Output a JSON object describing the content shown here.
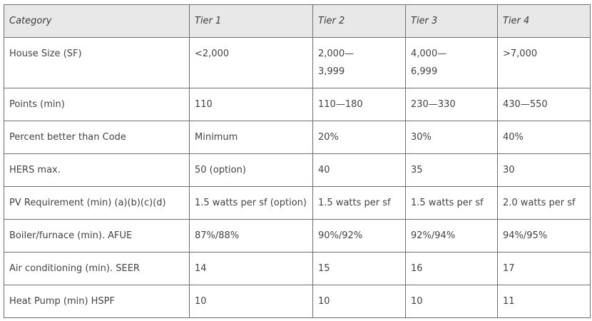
{
  "table": {
    "headers": [
      "Category",
      "Tier 1",
      "Tier 2",
      "Tier 3",
      "Tier 4"
    ],
    "rows": [
      [
        "House Size (SF)",
        "<2,000",
        "2,000—\n3,999",
        "4,000—\n6,999",
        ">7,000"
      ],
      [
        "Points (min)",
        "110",
        "110—180",
        "230—330",
        "430—550"
      ],
      [
        "Percent better than Code",
        "Minimum",
        "20%",
        "30%",
        "40%"
      ],
      [
        "HERS max.",
        "50 (option)",
        "40",
        "35",
        "30"
      ],
      [
        "PV Requirement (min) (a)(b)(c)(d)",
        "1.5 watts per sf (option)",
        "1.5 watts per sf",
        "1.5 watts per sf",
        "2.0 watts per sf"
      ],
      [
        "Boiler/furnace (min). AFUE",
        "87%/88%",
        "90%/92%",
        "92%/94%",
        "94%/95%"
      ],
      [
        "Air conditioning (min). SEER",
        "14",
        "15",
        "16",
        "17"
      ],
      [
        "Heat Pump (min) HSPF",
        "10",
        "10",
        "10",
        "11"
      ]
    ]
  }
}
